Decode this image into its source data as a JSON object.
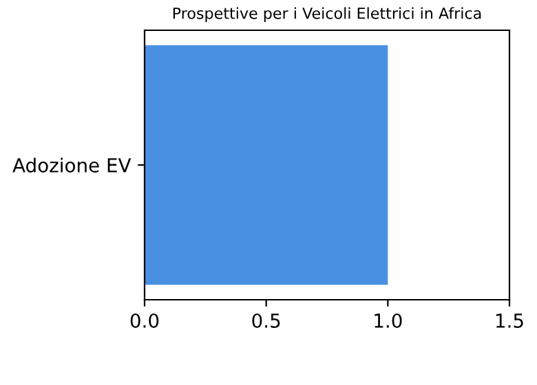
{
  "chart_data": {
    "type": "bar",
    "orientation": "horizontal",
    "title": "Prospettive per i Veicoli Elettrici in Africa",
    "categories": [
      "Adozione EV"
    ],
    "series": [
      {
        "color": "#4a90e2",
        "values": [
          1.0
        ]
      }
    ],
    "xlim": [
      0,
      1.5
    ],
    "xticks": [
      {
        "value": 0,
        "label": "0.0"
      },
      0.5,
      {
        "value": 1,
        "label": "1.0"
      },
      1.5
    ],
    "grid": false,
    "legend": false
  }
}
